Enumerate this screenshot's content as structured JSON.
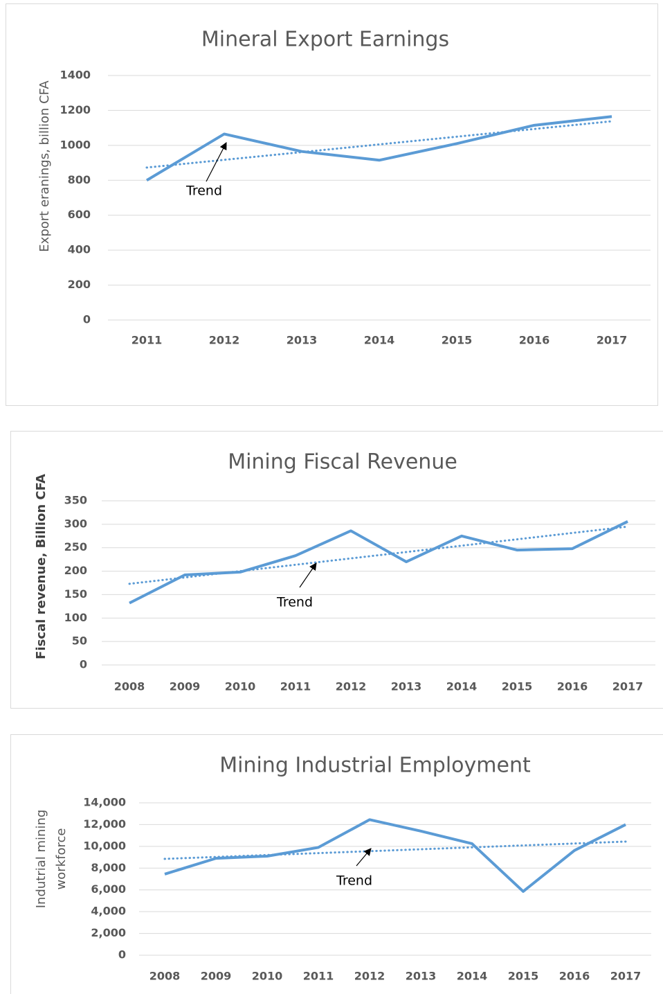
{
  "chart_data": [
    {
      "type": "line",
      "title": "Mineral Export Earnings",
      "ylabel": [
        "Export eranings, billion CFA"
      ],
      "categories": [
        "2011",
        "2012",
        "2013",
        "2014",
        "2015",
        "2016",
        "2017"
      ],
      "values": [
        800,
        1065,
        965,
        915,
        1010,
        1115,
        1165
      ],
      "trend": [
        873,
        1138
      ],
      "annotation": "Trend",
      "color": "#5b9bd5",
      "ylim": [
        0,
        1400
      ],
      "yticks": [
        0,
        200,
        400,
        600,
        800,
        1000,
        1200,
        1400
      ],
      "grid": true
    },
    {
      "type": "line",
      "title": "Mining Fiscal Revenue",
      "ylabel": [
        "Fiscal revenue, Billion CFA"
      ],
      "categories": [
        "2008",
        "2009",
        "2010",
        "2011",
        "2012",
        "2013",
        "2014",
        "2015",
        "2016",
        "2017"
      ],
      "values": [
        132,
        192,
        198,
        233,
        286,
        220,
        275,
        245,
        248,
        306
      ],
      "trend": [
        173,
        295
      ],
      "annotation": "Trend",
      "color": "#5b9bd5",
      "ylim": [
        0,
        350
      ],
      "yticks": [
        0,
        50,
        100,
        150,
        200,
        250,
        300,
        350
      ],
      "grid": true
    },
    {
      "type": "line",
      "title": "Mining Industrial Employment",
      "ylabel": [
        "Indutrial mining",
        "workforce"
      ],
      "categories": [
        "2008",
        "2009",
        "2010",
        "2011",
        "2012",
        "2013",
        "2014",
        "2015",
        "2016",
        "2017"
      ],
      "values": [
        7450,
        8900,
        9100,
        9900,
        12450,
        11400,
        10250,
        5860,
        9620,
        12000
      ],
      "trend": [
        8850,
        10440
      ],
      "annotation": "Trend",
      "color": "#5b9bd5",
      "ylim": [
        0,
        14000
      ],
      "yticks": [
        0,
        {
          "value": 2000,
          "label": "2,000"
        },
        {
          "value": 4000,
          "label": "4,000"
        },
        {
          "value": 6000,
          "label": "6,000"
        },
        {
          "value": 8000,
          "label": "8,000"
        },
        {
          "value": 10000,
          "label": "10,000"
        },
        {
          "value": 12000,
          "label": "12,000"
        },
        {
          "value": 14000,
          "label": "14,000"
        }
      ],
      "grid": true
    }
  ]
}
